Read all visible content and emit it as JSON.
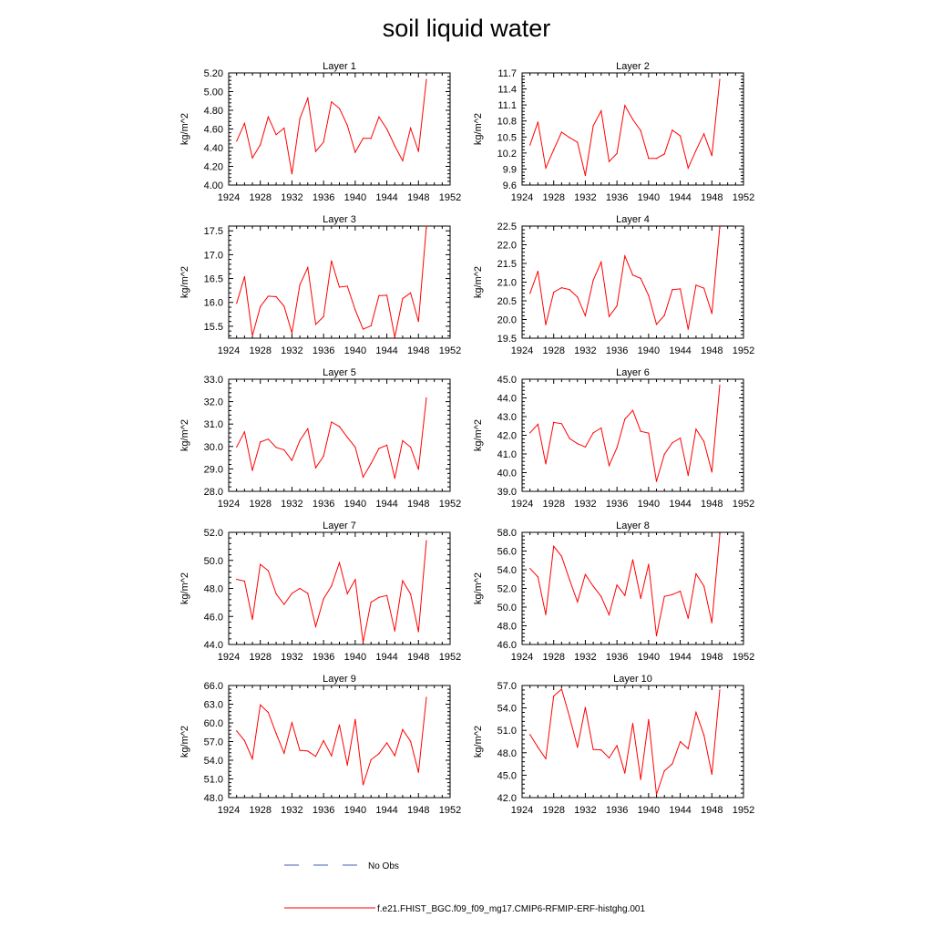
{
  "title": "soil liquid water",
  "legend": {
    "no_obs_label": "No Obs",
    "model_label": "f.e21.FHIST_BGC.f09_f09_mg17.CMIP6-RFMIP-ERF-histghg.001",
    "no_obs_color": "#4a5dbb",
    "model_color": "#ff0000"
  },
  "colors": {
    "line": "#ff0000",
    "axis": "#000000"
  },
  "chart_data": [
    {
      "type": "line",
      "title": "Layer 1",
      "xlabel": "",
      "ylabel": "kg/m^2",
      "xlim": [
        1924,
        1952
      ],
      "ylim": [
        4.0,
        5.2
      ],
      "x_ticks": [
        1924,
        1928,
        1932,
        1936,
        1940,
        1944,
        1948,
        1952
      ],
      "y_ticks": [
        "4.00",
        "4.20",
        "4.40",
        "4.60",
        "4.80",
        "5.00",
        "5.20"
      ],
      "x": [
        1925,
        1926,
        1927,
        1928,
        1929,
        1930,
        1931,
        1932,
        1933,
        1934,
        1935,
        1936,
        1937,
        1938,
        1939,
        1940,
        1941,
        1942,
        1943,
        1944,
        1945,
        1946,
        1947,
        1948,
        1949
      ],
      "series": [
        {
          "name": "f.e21.FHIST_BGC.f09_f09_mg17.CMIP6-RFMIP-ERF-histghg.001",
          "values": [
            4.47,
            4.66,
            4.29,
            4.43,
            4.73,
            4.54,
            4.61,
            4.12,
            4.71,
            4.93,
            4.36,
            4.46,
            4.89,
            4.82,
            4.64,
            4.35,
            4.5,
            4.5,
            4.73,
            4.6,
            4.42,
            4.26,
            4.61,
            4.36,
            5.13
          ]
        }
      ]
    },
    {
      "type": "line",
      "title": "Layer 2",
      "xlabel": "",
      "ylabel": "kg/m^2",
      "xlim": [
        1924,
        1952
      ],
      "ylim": [
        9.6,
        11.7
      ],
      "x_ticks": [
        1924,
        1928,
        1932,
        1936,
        1940,
        1944,
        1948,
        1952
      ],
      "y_ticks": [
        "9.6",
        "9.9",
        "10.2",
        "10.5",
        "10.8",
        "11.1",
        "11.4",
        "11.7"
      ],
      "x": [
        1925,
        1926,
        1927,
        1928,
        1929,
        1930,
        1931,
        1932,
        1933,
        1934,
        1935,
        1936,
        1937,
        1938,
        1939,
        1940,
        1941,
        1942,
        1943,
        1944,
        1945,
        1946,
        1947,
        1948,
        1949
      ],
      "series": [
        {
          "name": "f.e21.FHIST_BGC.f09_f09_mg17.CMIP6-RFMIP-ERF-histghg.001",
          "values": [
            10.35,
            10.78,
            9.92,
            10.26,
            10.59,
            10.49,
            10.4,
            9.78,
            10.71,
            10.99,
            10.04,
            10.19,
            11.09,
            10.83,
            10.62,
            10.1,
            10.1,
            10.18,
            10.63,
            10.52,
            9.92,
            10.25,
            10.56,
            10.15,
            11.58
          ]
        }
      ]
    },
    {
      "type": "line",
      "title": "Layer 3",
      "xlabel": "",
      "ylabel": "kg/m^2",
      "xlim": [
        1924,
        1952
      ],
      "ylim": [
        15.25,
        17.6
      ],
      "x_ticks": [
        1924,
        1928,
        1932,
        1936,
        1940,
        1944,
        1948,
        1952
      ],
      "y_ticks": [
        "15.5",
        "16.0",
        "16.5",
        "17.0",
        "17.5"
      ],
      "x": [
        1925,
        1926,
        1927,
        1928,
        1929,
        1930,
        1931,
        1932,
        1933,
        1934,
        1935,
        1936,
        1937,
        1938,
        1939,
        1940,
        1941,
        1942,
        1943,
        1944,
        1945,
        1946,
        1947,
        1948,
        1949
      ],
      "series": [
        {
          "name": "f.e21.FHIST_BGC.f09_f09_mg17.CMIP6-RFMIP-ERF-histghg.001",
          "values": [
            15.98,
            16.54,
            15.3,
            15.91,
            16.13,
            16.12,
            15.92,
            15.36,
            16.37,
            16.73,
            15.54,
            15.7,
            16.87,
            16.32,
            16.34,
            15.84,
            15.44,
            15.51,
            16.14,
            16.15,
            15.27,
            16.08,
            16.2,
            15.6,
            17.6
          ]
        }
      ]
    },
    {
      "type": "line",
      "title": "Layer 4",
      "xlabel": "",
      "ylabel": "kg/m^2",
      "xlim": [
        1924,
        1952
      ],
      "ylim": [
        19.5,
        22.5
      ],
      "x_ticks": [
        1924,
        1928,
        1932,
        1936,
        1940,
        1944,
        1948,
        1952
      ],
      "y_ticks": [
        "19.5",
        "20.0",
        "20.5",
        "21.0",
        "21.5",
        "22.0",
        "22.5"
      ],
      "x": [
        1925,
        1926,
        1927,
        1928,
        1929,
        1930,
        1931,
        1932,
        1933,
        1934,
        1935,
        1936,
        1937,
        1938,
        1939,
        1940,
        1941,
        1942,
        1943,
        1944,
        1945,
        1946,
        1947,
        1948,
        1949
      ],
      "series": [
        {
          "name": "f.e21.FHIST_BGC.f09_f09_mg17.CMIP6-RFMIP-ERF-histghg.001",
          "values": [
            20.7,
            21.29,
            19.86,
            20.73,
            20.85,
            20.8,
            20.6,
            20.1,
            21.05,
            21.54,
            20.08,
            20.36,
            21.7,
            21.19,
            21.1,
            20.64,
            19.87,
            20.11,
            20.8,
            20.82,
            19.74,
            20.92,
            20.84,
            20.16,
            22.48
          ]
        }
      ]
    },
    {
      "type": "line",
      "title": "Layer 5",
      "xlabel": "",
      "ylabel": "kg/m^2",
      "xlim": [
        1924,
        1952
      ],
      "ylim": [
        28.0,
        33.0
      ],
      "x_ticks": [
        1924,
        1928,
        1932,
        1936,
        1940,
        1944,
        1948,
        1952
      ],
      "y_ticks": [
        "28.0",
        "29.0",
        "30.0",
        "31.0",
        "32.0",
        "33.0"
      ],
      "x": [
        1925,
        1926,
        1927,
        1928,
        1929,
        1930,
        1931,
        1932,
        1933,
        1934,
        1935,
        1936,
        1937,
        1938,
        1939,
        1940,
        1941,
        1942,
        1943,
        1944,
        1945,
        1946,
        1947,
        1948,
        1949
      ],
      "series": [
        {
          "name": "f.e21.FHIST_BGC.f09_f09_mg17.CMIP6-RFMIP-ERF-histghg.001",
          "values": [
            29.98,
            30.65,
            28.93,
            30.2,
            30.33,
            29.96,
            29.85,
            29.38,
            30.27,
            30.79,
            29.05,
            29.57,
            31.09,
            30.89,
            30.41,
            29.97,
            28.63,
            29.24,
            29.91,
            30.06,
            28.58,
            30.26,
            29.97,
            28.98,
            32.17
          ]
        }
      ]
    },
    {
      "type": "line",
      "title": "Layer 6",
      "xlabel": "",
      "ylabel": "kg/m^2",
      "xlim": [
        1924,
        1952
      ],
      "ylim": [
        39.0,
        45.0
      ],
      "x_ticks": [
        1924,
        1928,
        1932,
        1936,
        1940,
        1944,
        1948,
        1952
      ],
      "y_ticks": [
        "39.0",
        "40.0",
        "41.0",
        "42.0",
        "43.0",
        "44.0",
        "45.0"
      ],
      "x": [
        1925,
        1926,
        1927,
        1928,
        1929,
        1930,
        1931,
        1932,
        1933,
        1934,
        1935,
        1936,
        1937,
        1938,
        1939,
        1940,
        1941,
        1942,
        1943,
        1944,
        1945,
        1946,
        1947,
        1948,
        1949
      ],
      "series": [
        {
          "name": "f.e21.FHIST_BGC.f09_f09_mg17.CMIP6-RFMIP-ERF-histghg.001",
          "values": [
            42.13,
            42.59,
            40.47,
            42.69,
            42.62,
            41.83,
            41.55,
            41.37,
            42.13,
            42.39,
            40.38,
            41.33,
            42.86,
            43.33,
            42.21,
            42.11,
            39.53,
            40.98,
            41.6,
            41.85,
            39.85,
            42.33,
            41.67,
            40.03,
            44.68
          ]
        }
      ]
    },
    {
      "type": "line",
      "title": "Layer 7",
      "xlabel": "",
      "ylabel": "kg/m^2",
      "xlim": [
        1924,
        1952
      ],
      "ylim": [
        44.0,
        52.0
      ],
      "x_ticks": [
        1924,
        1928,
        1932,
        1936,
        1940,
        1944,
        1948,
        1952
      ],
      "y_ticks": [
        "44.0",
        "46.0",
        "48.0",
        "50.0",
        "52.0"
      ],
      "x": [
        1925,
        1926,
        1927,
        1928,
        1929,
        1930,
        1931,
        1932,
        1933,
        1934,
        1935,
        1936,
        1937,
        1938,
        1939,
        1940,
        1941,
        1942,
        1943,
        1944,
        1945,
        1946,
        1947,
        1948,
        1949
      ],
      "series": [
        {
          "name": "f.e21.FHIST_BGC.f09_f09_mg17.CMIP6-RFMIP-ERF-histghg.001",
          "values": [
            48.65,
            48.52,
            45.79,
            49.72,
            49.27,
            47.61,
            46.86,
            47.64,
            48.0,
            47.65,
            45.28,
            47.25,
            48.17,
            49.84,
            47.62,
            48.63,
            44.15,
            47.01,
            47.36,
            47.49,
            44.96,
            48.55,
            47.6,
            44.91,
            51.4
          ]
        }
      ]
    },
    {
      "type": "line",
      "title": "Layer 8",
      "xlabel": "",
      "ylabel": "kg/m^2",
      "xlim": [
        1924,
        1952
      ],
      "ylim": [
        46.0,
        58.0
      ],
      "x_ticks": [
        1924,
        1928,
        1932,
        1936,
        1940,
        1944,
        1948,
        1952
      ],
      "y_ticks": [
        "46.0",
        "48.0",
        "50.0",
        "52.0",
        "54.0",
        "56.0",
        "58.0"
      ],
      "x": [
        1925,
        1926,
        1927,
        1928,
        1929,
        1930,
        1931,
        1932,
        1933,
        1934,
        1935,
        1936,
        1937,
        1938,
        1939,
        1940,
        1941,
        1942,
        1943,
        1944,
        1945,
        1946,
        1947,
        1948,
        1949
      ],
      "series": [
        {
          "name": "f.e21.FHIST_BGC.f09_f09_mg17.CMIP6-RFMIP-ERF-histghg.001",
          "values": [
            54.13,
            53.23,
            49.19,
            56.51,
            55.43,
            52.93,
            50.57,
            53.49,
            52.23,
            51.13,
            49.17,
            52.36,
            51.25,
            55.06,
            50.93,
            54.59,
            46.93,
            51.14,
            51.34,
            51.71,
            48.8,
            53.56,
            52.24,
            48.33,
            57.77
          ]
        }
      ]
    },
    {
      "type": "line",
      "title": "Layer 9",
      "xlabel": "",
      "ylabel": "kg/m^2",
      "xlim": [
        1924,
        1952
      ],
      "ylim": [
        48.0,
        66.0
      ],
      "x_ticks": [
        1924,
        1928,
        1932,
        1936,
        1940,
        1944,
        1948,
        1952
      ],
      "y_ticks": [
        "48.0",
        "51.0",
        "54.0",
        "57.0",
        "60.0",
        "63.0",
        "66.0"
      ],
      "x": [
        1925,
        1926,
        1927,
        1928,
        1929,
        1930,
        1931,
        1932,
        1933,
        1934,
        1935,
        1936,
        1937,
        1938,
        1939,
        1940,
        1941,
        1942,
        1943,
        1944,
        1945,
        1946,
        1947,
        1948,
        1949
      ],
      "series": [
        {
          "name": "f.e21.FHIST_BGC.f09_f09_mg17.CMIP6-RFMIP-ERF-histghg.001",
          "values": [
            58.71,
            57.15,
            54.22,
            62.88,
            61.68,
            58.29,
            55.12,
            60.03,
            55.59,
            55.48,
            54.62,
            57.14,
            54.71,
            59.68,
            53.21,
            60.55,
            50.04,
            54.09,
            55.06,
            56.79,
            54.73,
            58.93,
            57.05,
            52.06,
            64.1
          ]
        }
      ]
    },
    {
      "type": "line",
      "title": "Layer 10",
      "xlabel": "",
      "ylabel": "kg/m^2",
      "xlim": [
        1924,
        1952
      ],
      "ylim": [
        42.0,
        57.0
      ],
      "x_ticks": [
        1924,
        1928,
        1932,
        1936,
        1940,
        1944,
        1948,
        1952
      ],
      "y_ticks": [
        "42.0",
        "45.0",
        "48.0",
        "51.0",
        "54.0",
        "57.0"
      ],
      "x": [
        1925,
        1926,
        1927,
        1928,
        1929,
        1930,
        1931,
        1932,
        1933,
        1934,
        1935,
        1936,
        1937,
        1938,
        1939,
        1940,
        1941,
        1942,
        1943,
        1944,
        1945,
        1946,
        1947,
        1948,
        1949
      ],
      "series": [
        {
          "name": "f.e21.FHIST_BGC.f09_f09_mg17.CMIP6-RFMIP-ERF-histghg.001",
          "values": [
            50.43,
            48.73,
            47.19,
            55.59,
            56.51,
            52.81,
            48.73,
            54.07,
            48.43,
            48.39,
            47.31,
            48.95,
            45.27,
            51.92,
            44.43,
            52.45,
            42.43,
            45.58,
            46.53,
            49.49,
            48.55,
            53.42,
            50.37,
            45.12,
            56.41
          ]
        }
      ]
    }
  ]
}
